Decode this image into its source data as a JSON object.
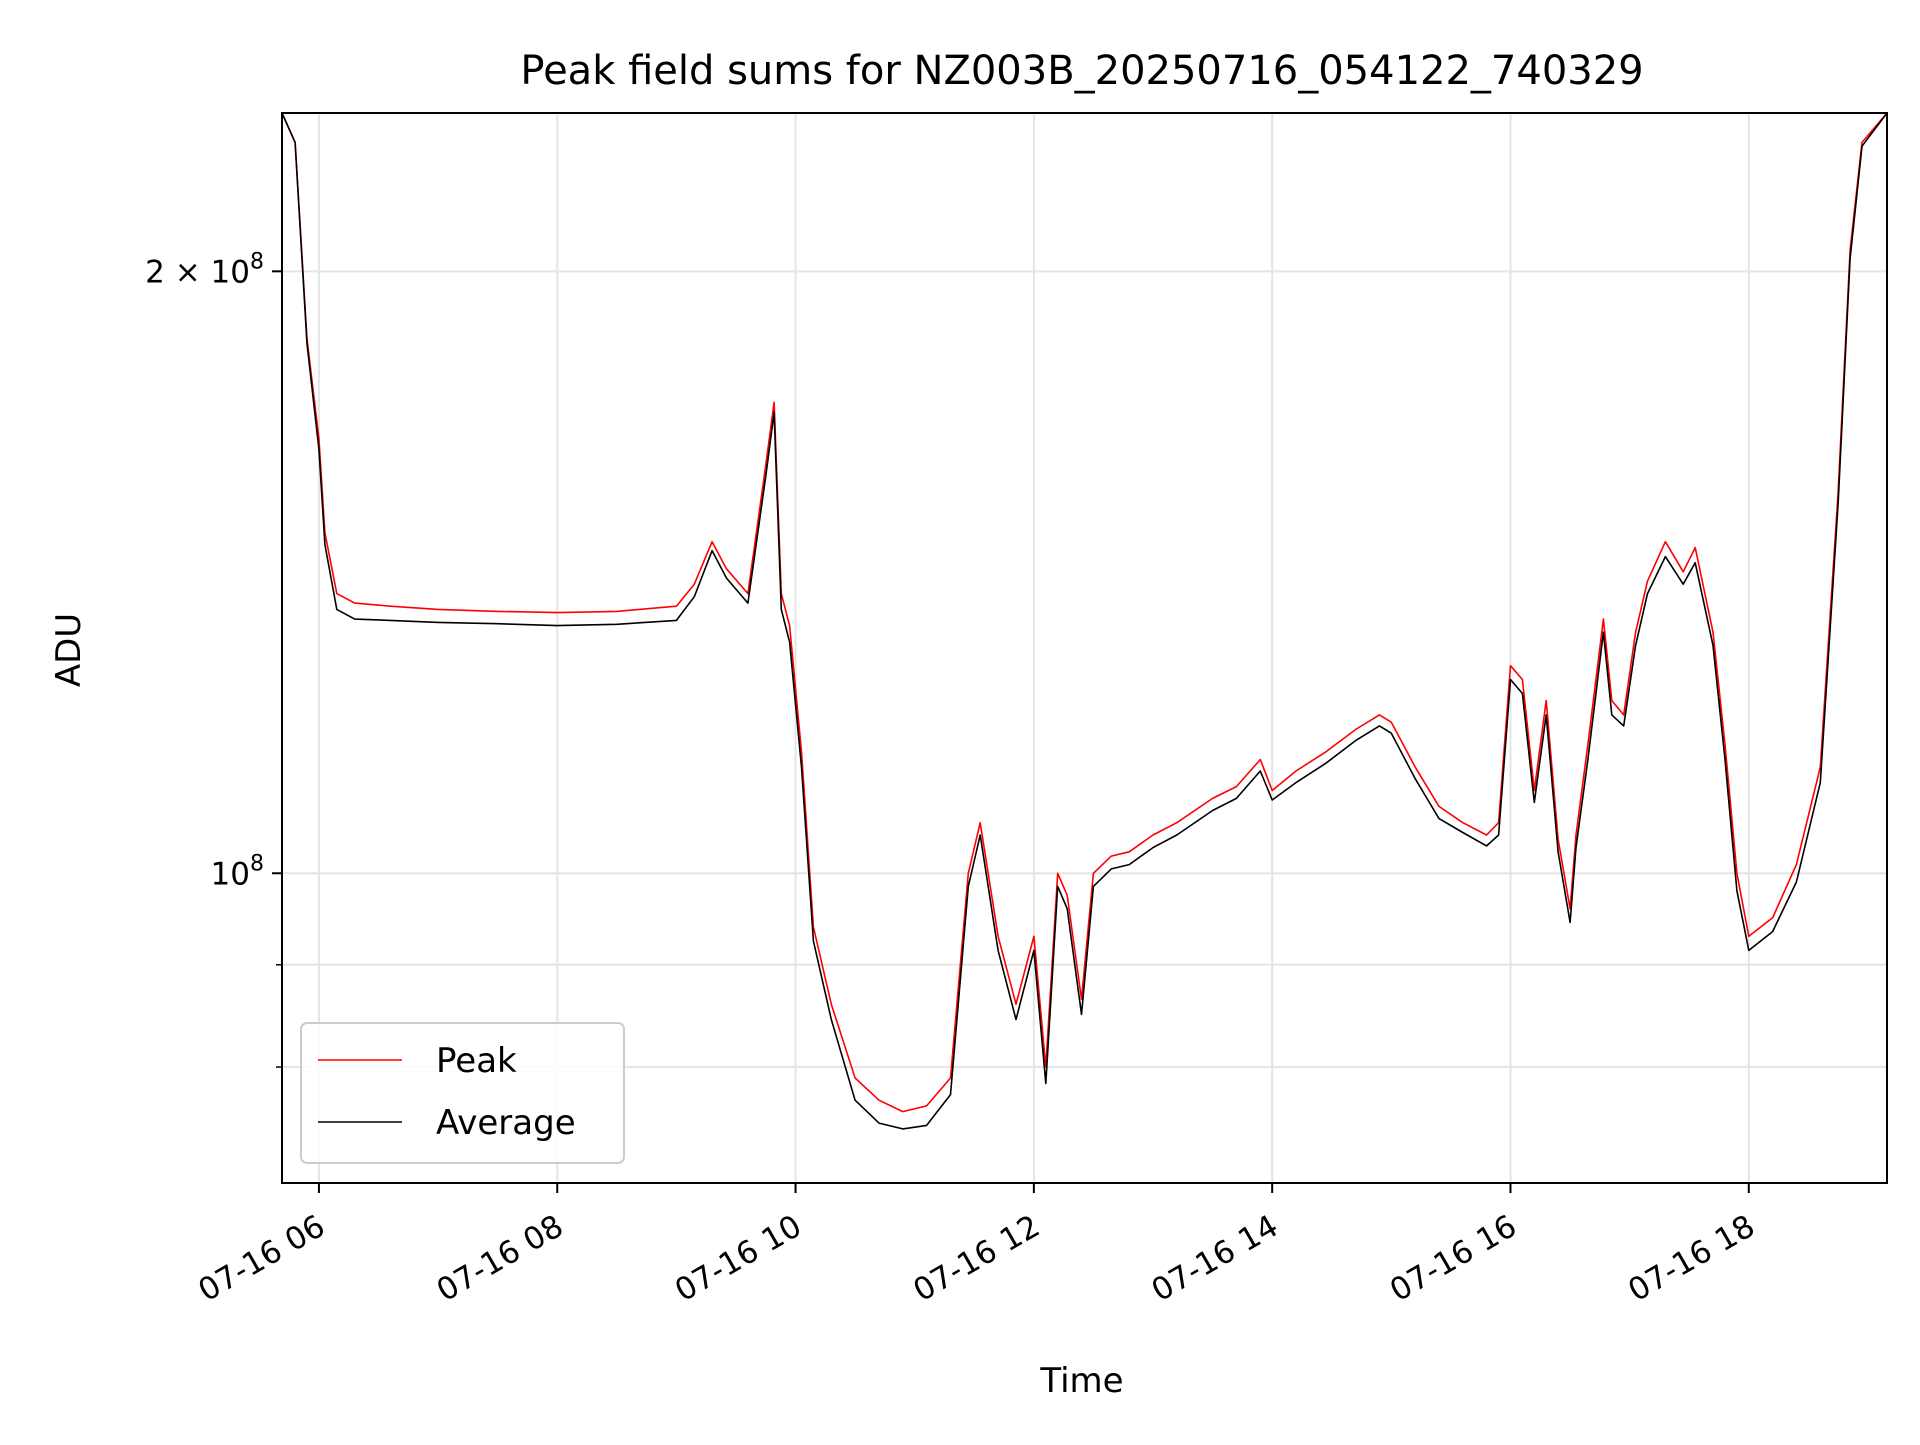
{
  "chart_data": {
    "type": "line",
    "title": "Peak field sums for NZ003B_20250716_054122_740329",
    "xlabel": "Time",
    "ylabel": "ADU",
    "x_unit": "hour of day (2025-07-16)",
    "xlim": [
      5.69,
      19.16
    ],
    "ylim": [
      70000000,
      240000000
    ],
    "yscale": "log",
    "grid": true,
    "legend_position": "lower-left",
    "x_ticks": [
      {
        "value": 6,
        "label": "07-16 06"
      },
      {
        "value": 8,
        "label": "07-16 08"
      },
      {
        "value": 10,
        "label": "07-16 10"
      },
      {
        "value": 12,
        "label": "07-16 12"
      },
      {
        "value": 14,
        "label": "07-16 14"
      },
      {
        "value": 16,
        "label": "07-16 16"
      },
      {
        "value": 18,
        "label": "07-16 18"
      }
    ],
    "y_ticks": [
      {
        "value": 200000000,
        "base": "2 × 10",
        "exp": "8"
      },
      {
        "value": 100000000,
        "base": "10",
        "exp": "8"
      }
    ],
    "y_minor_ticks": [
      90000000,
      80000000
    ],
    "series": [
      {
        "name": "Peak",
        "color": "#ff0000",
        "x": [
          5.69,
          5.8,
          5.9,
          6.0,
          6.05,
          6.15,
          6.3,
          6.6,
          7.0,
          7.5,
          8.0,
          8.5,
          9.0,
          9.15,
          9.3,
          9.42,
          9.6,
          9.75,
          9.82,
          9.88,
          9.95,
          10.05,
          10.15,
          10.3,
          10.5,
          10.7,
          10.9,
          11.1,
          11.3,
          11.45,
          11.55,
          11.7,
          11.85,
          12.0,
          12.1,
          12.2,
          12.28,
          12.4,
          12.5,
          12.65,
          12.8,
          13.0,
          13.2,
          13.5,
          13.7,
          13.9,
          14.0,
          14.2,
          14.45,
          14.7,
          14.9,
          15.0,
          15.2,
          15.4,
          15.6,
          15.8,
          15.9,
          16.0,
          16.1,
          16.2,
          16.3,
          16.4,
          16.5,
          16.55,
          16.65,
          16.78,
          16.85,
          16.95,
          17.05,
          17.15,
          17.3,
          17.45,
          17.55,
          17.7,
          17.8,
          17.9,
          18.0,
          18.2,
          18.4,
          18.6,
          18.75,
          18.85,
          18.95,
          19.16
        ],
        "y": [
          240000000,
          232000000,
          185000000,
          165000000,
          148000000,
          138000000,
          136500000,
          136000000,
          135500000,
          135200000,
          135000000,
          135200000,
          136000000,
          139500000,
          146500000,
          142000000,
          138000000,
          160000000,
          172000000,
          138000000,
          133000000,
          115000000,
          94000000,
          86000000,
          79000000,
          77000000,
          76000000,
          76500000,
          79000000,
          100000000,
          106000000,
          93000000,
          86000000,
          93000000,
          80000000,
          100000000,
          97500000,
          86500000,
          100000000,
          102000000,
          102500000,
          104500000,
          106000000,
          109000000,
          110500000,
          114000000,
          110000000,
          112500000,
          115000000,
          118000000,
          120000000,
          119000000,
          113000000,
          108000000,
          106000000,
          104500000,
          106000000,
          127000000,
          125000000,
          110000000,
          122000000,
          104000000,
          96000000,
          104500000,
          116000000,
          134000000,
          122000000,
          120000000,
          132000000,
          140000000,
          146500000,
          141500000,
          145500000,
          132000000,
          116000000,
          100000000,
          93000000,
          95000000,
          101000000,
          113000000,
          155000000,
          205000000,
          232000000,
          240000000
        ]
      },
      {
        "name": "Average",
        "color": "#000000",
        "x": [
          5.69,
          5.8,
          5.9,
          6.0,
          6.05,
          6.15,
          6.3,
          6.6,
          7.0,
          7.5,
          8.0,
          8.5,
          9.0,
          9.15,
          9.3,
          9.42,
          9.6,
          9.75,
          9.82,
          9.88,
          9.95,
          10.05,
          10.15,
          10.3,
          10.5,
          10.7,
          10.9,
          11.1,
          11.3,
          11.45,
          11.55,
          11.7,
          11.85,
          12.0,
          12.1,
          12.2,
          12.28,
          12.4,
          12.5,
          12.65,
          12.8,
          13.0,
          13.2,
          13.5,
          13.7,
          13.9,
          14.0,
          14.2,
          14.45,
          14.7,
          14.9,
          15.0,
          15.2,
          15.4,
          15.6,
          15.8,
          15.9,
          16.0,
          16.1,
          16.2,
          16.3,
          16.4,
          16.5,
          16.55,
          16.65,
          16.78,
          16.85,
          16.95,
          17.05,
          17.15,
          17.3,
          17.45,
          17.55,
          17.7,
          17.8,
          17.9,
          18.0,
          18.2,
          18.4,
          18.6,
          18.75,
          18.85,
          18.95,
          19.16
        ],
        "y": [
          240000000,
          232000000,
          184000000,
          163000000,
          146000000,
          135500000,
          134000000,
          133800000,
          133500000,
          133300000,
          133000000,
          133200000,
          133800000,
          137500000,
          145000000,
          140500000,
          136500000,
          158000000,
          170000000,
          135500000,
          130500000,
          113000000,
          92500000,
          84500000,
          77000000,
          75000000,
          74500000,
          74800000,
          77500000,
          98500000,
          104500000,
          91500000,
          84500000,
          91500000,
          78500000,
          98500000,
          96000000,
          85000000,
          98500000,
          100500000,
          101000000,
          103000000,
          104500000,
          107500000,
          109000000,
          112500000,
          108800000,
          111000000,
          113500000,
          116500000,
          118500000,
          117500000,
          111500000,
          106500000,
          104800000,
          103200000,
          104500000,
          125000000,
          123000000,
          108500000,
          120000000,
          102500000,
          94500000,
          103000000,
          114000000,
          132000000,
          120000000,
          118500000,
          130000000,
          138000000,
          144000000,
          139500000,
          143000000,
          130000000,
          114000000,
          98000000,
          91500000,
          93500000,
          99000000,
          111000000,
          153000000,
          203000000,
          231000000,
          240000000
        ]
      }
    ]
  }
}
